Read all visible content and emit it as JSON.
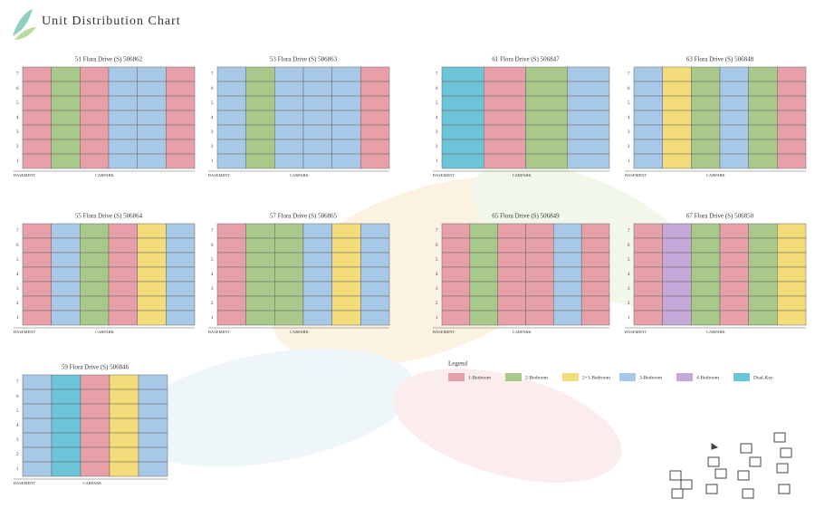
{
  "header": {
    "title": "Unit Distribution Chart"
  },
  "floors": [
    "7",
    "6",
    "5",
    "4",
    "3",
    "2",
    "1"
  ],
  "footer_labels": {
    "basement": "BASEMENT",
    "carpark": "CARPARK"
  },
  "blocks": [
    {
      "name": "51 Flora Drive (S) 506862",
      "columns": [
        "#e8a0a8",
        "#a9c98a",
        "#e8a0a8",
        "#a8c8e8",
        "#a8c8e8",
        "#e8a0a8"
      ]
    },
    {
      "name": "53 Flora Drive (S) 506863",
      "columns": [
        "#a8c8e8",
        "#a9c98a",
        "#a8c8e8",
        "#a8c8e8",
        "#a8c8e8",
        "#e8a0a8"
      ]
    },
    {
      "name": "61 Flora Drive (S) 506847",
      "columns": [
        "#6cc4d8",
        "#e8a0a8",
        "#a9c98a",
        "#a8c8e8"
      ]
    },
    {
      "name": "63 Flora Drive (S) 506848",
      "columns": [
        "#a8c8e8",
        "#f3dc7a",
        "#a9c98a",
        "#a8c8e8",
        "#a9c98a",
        "#e8a0a8"
      ]
    },
    {
      "name": "55 Flora Drive (S) 506864",
      "columns": [
        "#e8a0a8",
        "#a8c8e8",
        "#a9c98a",
        "#e8a0a8",
        "#f3dc7a",
        "#a8c8e8"
      ]
    },
    {
      "name": "57 Flora Drive (S) 506865",
      "columns": [
        "#e8a0a8",
        "#a9c98a",
        "#a9c98a",
        "#a8c8e8",
        "#f3dc7a",
        "#a8c8e8"
      ]
    },
    {
      "name": "65 Flora Drive (S) 506849",
      "columns": [
        "#e8a0a8",
        "#a9c98a",
        "#e8a0a8",
        "#e8a0a8",
        "#a8c8e8",
        "#e8a0a8"
      ]
    },
    {
      "name": "67 Flora Drive (S) 506850",
      "columns": [
        "#e8a0a8",
        "#c4a8d8",
        "#a9c98a",
        "#e8a0a8",
        "#a9c98a",
        "#f3dc7a"
      ]
    },
    {
      "name": "59 Flora Drive (S) 506846",
      "columns": [
        "#a8c8e8",
        "#6cc4d8",
        "#e8a0a8",
        "#f3dc7a",
        "#a8c8e8"
      ]
    }
  ],
  "legend": {
    "title": "Legend",
    "items": [
      {
        "label": "1-Bedroom",
        "color": "#e8a0a8"
      },
      {
        "label": "2-Bedroom",
        "color": "#a9c98a"
      },
      {
        "label": "2+1-Bedroom",
        "color": "#f3dc7a"
      },
      {
        "label": "3-Bedroom",
        "color": "#a8c8e8"
      },
      {
        "label": "4-Bedroom",
        "color": "#c4a8d8"
      },
      {
        "label": "Dual-Key",
        "color": "#6cc4d8"
      }
    ]
  }
}
